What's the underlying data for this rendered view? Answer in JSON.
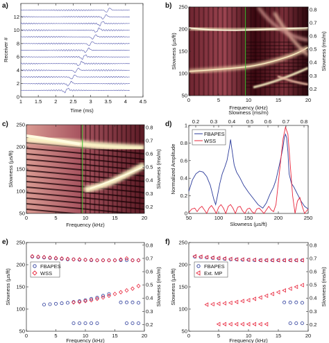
{
  "colors": {
    "trace": "#3a3fa0",
    "fbapes": "#2a3a9a",
    "wss": "#e8243a",
    "extmp": "#e8243a",
    "vline": "#3bbf2e",
    "heat_dark": "#1a0206",
    "heat_mid": "#b3525b",
    "heat_light": "#fbf3c6"
  },
  "chart_data": [
    {
      "panel": "a",
      "type": "line",
      "xlabel": "Time (ms)",
      "ylabel": "Receiver #",
      "xlim": [
        1,
        4.5
      ],
      "ylim": [
        0,
        14
      ],
      "xticks": [
        "1",
        "1.5",
        "2",
        "2.5",
        "3",
        "3.5",
        "4",
        "4.5"
      ],
      "yticks": [
        "0",
        "2",
        "4",
        "6",
        "8",
        "10",
        "12"
      ],
      "receivers": 13,
      "arrival_start_ms": 2.3,
      "arrival_step_ms": 0.1
    },
    {
      "panel": "b",
      "type": "heatmap",
      "xlabel": "Frequency (kHz)",
      "ylabel": "Slowness (µs/ft)",
      "y2label": "Slowness (ms/m)",
      "xlim": [
        0,
        20
      ],
      "ylim": [
        50,
        250
      ],
      "y2lim": [
        0.15,
        0.82
      ],
      "xticks": [
        "0",
        "5",
        "10",
        "15",
        "20"
      ],
      "yticks": [
        "50",
        "100",
        "150",
        "200",
        "250"
      ],
      "y2ticks": [
        "0.2",
        "0.3",
        "0.4",
        "0.5",
        "0.6",
        "0.7",
        "0.8"
      ],
      "marker_freq_khz": 9.5
    },
    {
      "panel": "c",
      "type": "heatmap",
      "xlabel": "Frequency (kHz)",
      "ylabel": "Slowness (µs/ft)",
      "y2label": "Slowness (ms/m)",
      "xlim": [
        0,
        20
      ],
      "ylim": [
        50,
        250
      ],
      "y2lim": [
        0.15,
        0.82
      ],
      "xticks": [
        "0",
        "5",
        "10",
        "15",
        "20"
      ],
      "yticks": [
        "50",
        "100",
        "150",
        "200",
        "250"
      ],
      "y2ticks": [
        "0.2",
        "0.3",
        "0.4",
        "0.5",
        "0.6",
        "0.7",
        "0.8"
      ],
      "marker_freq_khz": 9.5
    },
    {
      "panel": "d",
      "type": "line",
      "xlabel": "Slowness (µs/ft)",
      "ylabel": "Normalized Amplitude",
      "x2label": "Slowness (ms/m)",
      "xlim": [
        50,
        250
      ],
      "ylim": [
        0,
        1
      ],
      "xticks": [
        "50",
        "100",
        "150",
        "200",
        "250"
      ],
      "yticks": [
        "0",
        "0.2",
        "0.4",
        "0.6",
        "0.8",
        "1"
      ],
      "x2ticks": [
        "0.2",
        "0.3",
        "0.4",
        "0.5",
        "0.6",
        "0.7",
        "0.8"
      ],
      "legend": "top-left",
      "series": [
        {
          "name": "FBAPES",
          "x": [
            50,
            56,
            62,
            68,
            74,
            80,
            86,
            92,
            95,
            98,
            102,
            106,
            110,
            114,
            118,
            120,
            122,
            126,
            130,
            136,
            142,
            150,
            158,
            166,
            174,
            180,
            186,
            192,
            196,
            200,
            204,
            208,
            210,
            212,
            214,
            216,
            218,
            222,
            226,
            232,
            238,
            244,
            250
          ],
          "y": [
            0.25,
            0.38,
            0.45,
            0.48,
            0.47,
            0.42,
            0.32,
            0.16,
            0.1,
            0.2,
            0.34,
            0.45,
            0.52,
            0.6,
            0.75,
            0.84,
            0.74,
            0.55,
            0.47,
            0.4,
            0.32,
            0.24,
            0.17,
            0.1,
            0.06,
            0.12,
            0.22,
            0.3,
            0.38,
            0.5,
            0.62,
            0.76,
            0.86,
            0.9,
            0.86,
            0.7,
            0.45,
            0.34,
            0.3,
            0.22,
            0.14,
            0.08,
            0.05
          ]
        },
        {
          "name": "WSS",
          "x": [
            50,
            55,
            60,
            64,
            68,
            72,
            76,
            80,
            84,
            88,
            92,
            96,
            100,
            104,
            108,
            112,
            116,
            120,
            124,
            128,
            132,
            136,
            140,
            144,
            148,
            152,
            156,
            160,
            164,
            168,
            172,
            176,
            180,
            184,
            188,
            192,
            196,
            200,
            204,
            208,
            212,
            216,
            220,
            224,
            228,
            232,
            236,
            240,
            244,
            250
          ],
          "y": [
            0.01,
            0.05,
            0.06,
            0.02,
            0.06,
            0.08,
            0.04,
            0.0,
            0.06,
            0.09,
            0.05,
            0.0,
            0.07,
            0.1,
            0.06,
            0.0,
            0.08,
            0.1,
            0.06,
            0.0,
            0.07,
            0.08,
            0.03,
            0.0,
            0.05,
            0.06,
            0.02,
            0.0,
            0.05,
            0.06,
            0.03,
            0.0,
            0.04,
            0.08,
            0.04,
            0.02,
            0.1,
            0.35,
            0.6,
            0.85,
            0.98,
            0.9,
            0.55,
            0.2,
            0.0,
            0.14,
            0.18,
            0.08,
            0.0,
            0.05
          ]
        }
      ]
    },
    {
      "panel": "e",
      "type": "scatter",
      "xlabel": "Frequency (kHz)",
      "ylabel": "Slowness (µs/ft)",
      "y2label": "Slowness (ms/m)",
      "xlim": [
        0,
        20
      ],
      "ylim": [
        50,
        250
      ],
      "y2lim": [
        0.15,
        0.82
      ],
      "xticks": [
        "0",
        "5",
        "10",
        "15",
        "20"
      ],
      "yticks": [
        "50",
        "100",
        "150",
        "200",
        "250"
      ],
      "y2ticks": [
        "0.2",
        "0.3",
        "0.4",
        "0.5",
        "0.6",
        "0.7",
        "0.8"
      ],
      "legend": "left",
      "series": [
        {
          "name": "FBAPES",
          "marker": "circle",
          "points": [
            [
              1,
              218
            ],
            [
              2,
              217
            ],
            [
              3,
              216
            ],
            [
              4,
              215
            ],
            [
              5,
              214
            ],
            [
              6,
              213
            ],
            [
              7,
              212
            ],
            [
              8,
              212
            ],
            [
              9,
              211
            ],
            [
              10,
              211
            ],
            [
              11,
              210
            ],
            [
              12,
              210
            ],
            [
              13,
              210
            ],
            [
              14,
              210
            ],
            [
              15,
              210
            ],
            [
              16,
              210
            ],
            [
              17,
              210
            ],
            [
              18,
              210
            ],
            [
              19,
              210
            ],
            [
              3,
              110
            ],
            [
              4,
              111
            ],
            [
              5,
              112
            ],
            [
              6,
              113
            ],
            [
              7,
              114
            ],
            [
              8,
              116
            ],
            [
              9,
              118
            ],
            [
              10,
              120
            ],
            [
              11,
              123
            ],
            [
              12,
              126
            ],
            [
              13,
              130
            ],
            [
              14,
              134
            ],
            [
              16,
              115
            ],
            [
              17,
              115
            ],
            [
              18,
              115
            ],
            [
              19,
              114
            ],
            [
              8,
              68
            ],
            [
              9,
              68
            ],
            [
              10,
              68
            ],
            [
              11,
              68
            ],
            [
              12,
              68
            ],
            [
              17,
              68
            ],
            [
              18,
              68
            ],
            [
              19,
              68
            ]
          ]
        },
        {
          "name": "WSS",
          "marker": "diamond",
          "points": [
            [
              1,
              219
            ],
            [
              2,
              218
            ],
            [
              3,
              217
            ],
            [
              4,
              216
            ],
            [
              5,
              215
            ],
            [
              6,
              214
            ],
            [
              7,
              213
            ],
            [
              8,
              212
            ],
            [
              9,
              212
            ],
            [
              10,
              211
            ],
            [
              11,
              211
            ],
            [
              12,
              210
            ],
            [
              13,
              210
            ],
            [
              14,
              210
            ],
            [
              15,
              210
            ],
            [
              16,
              212
            ],
            [
              17,
              214
            ],
            [
              18,
              210
            ],
            [
              19,
              210
            ],
            [
              8,
              115
            ],
            [
              9,
              116
            ],
            [
              10,
              118
            ],
            [
              11,
              120
            ],
            [
              12,
              123
            ],
            [
              13,
              126
            ],
            [
              14,
              130
            ],
            [
              15,
              134
            ],
            [
              16,
              138
            ],
            [
              17,
              142
            ],
            [
              18,
              146
            ],
            [
              19,
              152
            ]
          ]
        }
      ]
    },
    {
      "panel": "f",
      "type": "scatter",
      "xlabel": "Frequency (kHz)",
      "ylabel": "Slowness (µs/ft)",
      "y2label": "Slowness (ms/m)",
      "xlim": [
        0,
        20
      ],
      "ylim": [
        50,
        250
      ],
      "y2lim": [
        0.15,
        0.82
      ],
      "xticks": [
        "0",
        "5",
        "10",
        "15",
        "20"
      ],
      "yticks": [
        "50",
        "100",
        "150",
        "200",
        "250"
      ],
      "y2ticks": [
        "0.2",
        "0.3",
        "0.4",
        "0.5",
        "0.6",
        "0.7",
        "0.8"
      ],
      "legend": "left",
      "series": [
        {
          "name": "FBAPES",
          "marker": "circle",
          "points": [
            [
              1,
              218
            ],
            [
              2,
              217
            ],
            [
              3,
              216
            ],
            [
              4,
              215
            ],
            [
              5,
              214
            ],
            [
              6,
              213
            ],
            [
              7,
              212
            ],
            [
              8,
              212
            ],
            [
              9,
              211
            ],
            [
              10,
              211
            ],
            [
              11,
              210
            ],
            [
              12,
              210
            ],
            [
              13,
              210
            ],
            [
              14,
              210
            ],
            [
              15,
              210
            ],
            [
              16,
              210
            ],
            [
              17,
              210
            ],
            [
              18,
              210
            ],
            [
              19,
              210
            ],
            [
              16,
              115
            ],
            [
              17,
              115
            ],
            [
              18,
              115
            ],
            [
              19,
              114
            ],
            [
              17,
              68
            ],
            [
              18,
              68
            ],
            [
              19,
              68
            ]
          ]
        },
        {
          "name": "Ext. MP",
          "marker": "triangle-left",
          "points": [
            [
              1,
              219
            ],
            [
              2,
              218
            ],
            [
              3,
              217
            ],
            [
              4,
              216
            ],
            [
              5,
              215
            ],
            [
              6,
              214
            ],
            [
              7,
              213
            ],
            [
              8,
              212
            ],
            [
              9,
              212
            ],
            [
              10,
              211
            ],
            [
              11,
              211
            ],
            [
              12,
              210
            ],
            [
              13,
              210
            ],
            [
              14,
              210
            ],
            [
              15,
              210
            ],
            [
              16,
              210
            ],
            [
              17,
              210
            ],
            [
              18,
              210
            ],
            [
              19,
              210
            ],
            [
              3,
              110
            ],
            [
              4,
              111
            ],
            [
              5,
              112
            ],
            [
              6,
              113
            ],
            [
              7,
              114
            ],
            [
              8,
              116
            ],
            [
              9,
              118
            ],
            [
              10,
              120
            ],
            [
              11,
              123
            ],
            [
              12,
              126
            ],
            [
              13,
              130
            ],
            [
              14,
              134
            ],
            [
              15,
              138
            ],
            [
              16,
              142
            ],
            [
              17,
              146
            ],
            [
              18,
              150
            ],
            [
              19,
              154
            ],
            [
              5,
              66
            ],
            [
              6,
              66
            ],
            [
              7,
              66
            ],
            [
              8,
              66
            ],
            [
              9,
              66
            ],
            [
              10,
              66
            ],
            [
              11,
              66
            ],
            [
              12,
              66
            ],
            [
              13,
              66
            ]
          ]
        }
      ]
    }
  ]
}
